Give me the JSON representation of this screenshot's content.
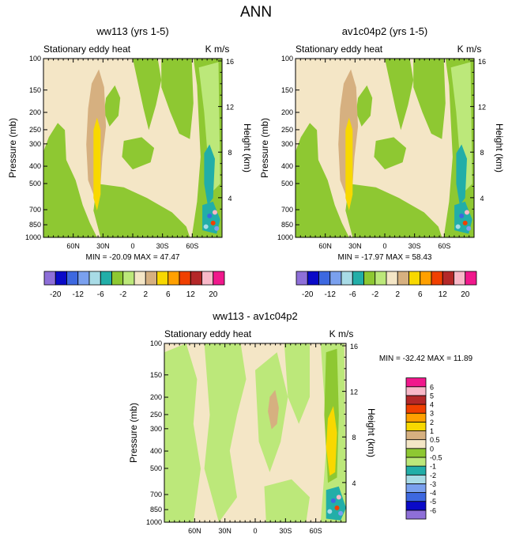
{
  "page_title": "ANN",
  "colors": {
    "fill_scale_top": [
      "#8e6fd8",
      "#0a0ac8",
      "#3d68e0",
      "#7aa0ee",
      "#a8dbe6",
      "#22aea8",
      "#8ec832",
      "#bce87a",
      "#f4e6c6",
      "#d6b080",
      "#f8d800",
      "#ffa000",
      "#f04000",
      "#b42828",
      "#f8b8c8",
      "#f0188c"
    ],
    "fill_scale_diff": [
      "#8e6fd8",
      "#0a0ac8",
      "#3d68e0",
      "#7aa0ee",
      "#a8dbe6",
      "#22aea8",
      "#bce87a",
      "#8ec832",
      "#f4e6c6",
      "#d6b080",
      "#f8d800",
      "#ffa000",
      "#f04000",
      "#b42828",
      "#f8b8c8",
      "#f0188c"
    ],
    "background_fill": "#f4e6c6",
    "negative_fill": "#8ec832",
    "light_negative_fill": "#bce87a",
    "warm_fill": "#d6b080",
    "core_fill": "#f8d800",
    "teal_fill": "#22aea8"
  },
  "chart_data": [
    {
      "type": "contour",
      "panel_title": "ww113 (yrs 1-5)",
      "left_string": "Stationary eddy heat",
      "right_string": "K m/s",
      "ylabel": "Pressure (mb)",
      "ylabel_right": "Height (km)",
      "x_ticks": [
        "60N",
        "30N",
        "0",
        "30S",
        "60S"
      ],
      "x_values": [
        60,
        30,
        0,
        -30,
        -60
      ],
      "xlim": [
        90,
        -90
      ],
      "y_ticks": [
        "100",
        "150",
        "200",
        "250",
        "300",
        "400",
        "500",
        "700",
        "850",
        "1000"
      ],
      "y_values": [
        100,
        150,
        200,
        250,
        300,
        400,
        500,
        700,
        850,
        1000
      ],
      "ylim": [
        1000,
        100
      ],
      "height_ticks": [
        "4",
        "8",
        "12",
        "16"
      ],
      "height_values": [
        4,
        8,
        12,
        16
      ],
      "min_label": "MIN = -20.09",
      "max_label": "MAX =  47.47",
      "min": -20.09,
      "max": 47.47,
      "colorbar": {
        "orientation": "horizontal",
        "levels": [
          -20,
          -16,
          -12,
          -8,
          -6,
          -4,
          -2,
          0,
          2,
          4,
          6,
          8,
          12,
          16,
          20
        ],
        "labels": [
          "-20",
          "-12",
          "-6",
          "-2",
          "2",
          "6",
          "12",
          "20"
        ]
      }
    },
    {
      "type": "contour",
      "panel_title": "av1c04p2 (yrs 1-5)",
      "left_string": "Stationary eddy heat",
      "right_string": "K m/s",
      "ylabel": "Pressure (mb)",
      "ylabel_right": "Height (km)",
      "x_ticks": [
        "60N",
        "30N",
        "0",
        "30S",
        "60S"
      ],
      "x_values": [
        60,
        30,
        0,
        -30,
        -60
      ],
      "xlim": [
        90,
        -90
      ],
      "y_ticks": [
        "100",
        "150",
        "200",
        "250",
        "300",
        "400",
        "500",
        "700",
        "850",
        "1000"
      ],
      "y_values": [
        100,
        150,
        200,
        250,
        300,
        400,
        500,
        700,
        850,
        1000
      ],
      "ylim": [
        1000,
        100
      ],
      "height_ticks": [
        "4",
        "8",
        "12",
        "16"
      ],
      "height_values": [
        4,
        8,
        12,
        16
      ],
      "min_label": "MIN = -17.97",
      "max_label": "MAX =  58.43",
      "min": -17.97,
      "max": 58.43,
      "colorbar": {
        "orientation": "horizontal",
        "levels": [
          -20,
          -16,
          -12,
          -8,
          -6,
          -4,
          -2,
          0,
          2,
          4,
          6,
          8,
          12,
          16,
          20
        ],
        "labels": [
          "-20",
          "-12",
          "-6",
          "-2",
          "2",
          "6",
          "12",
          "20"
        ]
      }
    },
    {
      "type": "contour",
      "panel_title": "ww113 - av1c04p2",
      "left_string": "Stationary eddy heat",
      "right_string": "K m/s",
      "ylabel": "Pressure (mb)",
      "ylabel_right": "Height (km)",
      "x_ticks": [
        "60N",
        "30N",
        "0",
        "30S",
        "60S"
      ],
      "x_values": [
        60,
        30,
        0,
        -30,
        -60
      ],
      "xlim": [
        90,
        -90
      ],
      "y_ticks": [
        "100",
        "150",
        "200",
        "250",
        "300",
        "400",
        "500",
        "700",
        "850",
        "1000"
      ],
      "y_values": [
        100,
        150,
        200,
        250,
        300,
        400,
        500,
        700,
        850,
        1000
      ],
      "ylim": [
        1000,
        100
      ],
      "height_ticks": [
        "4",
        "8",
        "12",
        "16"
      ],
      "height_values": [
        4,
        8,
        12,
        16
      ],
      "minmax_label": "MIN = -32.42  MAX =  11.89",
      "min": -32.42,
      "max": 11.89,
      "colorbar": {
        "orientation": "vertical",
        "levels": [
          -6,
          -5,
          -4,
          -3,
          -2,
          -1,
          -0.5,
          0,
          0.5,
          1,
          2,
          3,
          4,
          5,
          6
        ],
        "labels": [
          "-6",
          "-5",
          "-4",
          "-3",
          "-2",
          "-1",
          "-0.5",
          "0",
          "0.5",
          "1",
          "2",
          "3",
          "4",
          "5",
          "6"
        ]
      }
    }
  ]
}
